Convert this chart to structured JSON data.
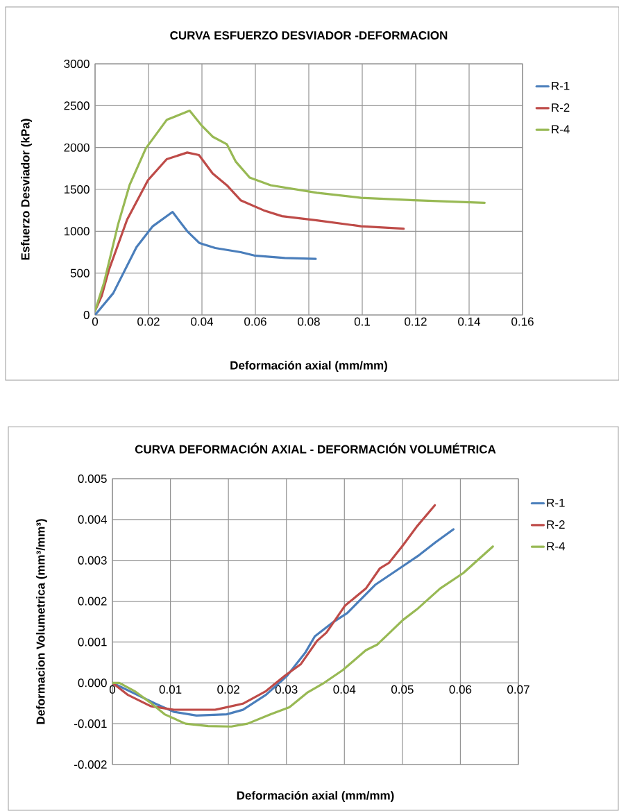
{
  "chart_data": [
    {
      "type": "line",
      "title": "CURVA ESFUERZO DESVIADOR -DEFORMACION",
      "xlabel": "Deformación axial (mm/mm)",
      "ylabel": "Esfuerzo Desviador (kPa)",
      "xlim": [
        0,
        0.16
      ],
      "ylim": [
        0,
        3000
      ],
      "xticks": [
        0,
        0.02,
        0.04,
        0.06,
        0.08,
        0.1,
        0.12,
        0.14,
        0.16
      ],
      "yticks": [
        0,
        500,
        1000,
        1500,
        2000,
        2500,
        3000
      ],
      "grid": true,
      "legend": "right",
      "series": [
        {
          "name": "R-1",
          "color": "#4a7ebb",
          "x": [
            0,
            0.0068,
            0.0155,
            0.0216,
            0.029,
            0.0345,
            0.039,
            0.045,
            0.0545,
            0.0596,
            0.071,
            0.0826
          ],
          "values": [
            0,
            260,
            810,
            1060,
            1230,
            1000,
            860,
            800,
            750,
            710,
            680,
            670
          ]
        },
        {
          "name": "R-2",
          "color": "#be4b48",
          "x": [
            0,
            0.0025,
            0.0051,
            0.012,
            0.0198,
            0.0268,
            0.0345,
            0.0389,
            0.044,
            0.0493,
            0.0545,
            0.0631,
            0.07,
            0.083,
            0.0995,
            0.1155
          ],
          "values": [
            50,
            230,
            530,
            1140,
            1610,
            1860,
            1940,
            1910,
            1690,
            1550,
            1370,
            1250,
            1180,
            1130,
            1060,
            1030
          ]
        },
        {
          "name": "R-4",
          "color": "#98b954",
          "x": [
            0,
            0.0034,
            0.0086,
            0.0129,
            0.019,
            0.0268,
            0.0354,
            0.0397,
            0.044,
            0.0493,
            0.0527,
            0.0579,
            0.0657,
            0.083,
            0.0995,
            0.1194,
            0.1458
          ],
          "values": [
            50,
            390,
            1080,
            1550,
            1990,
            2330,
            2440,
            2270,
            2130,
            2040,
            1830,
            1640,
            1550,
            1460,
            1400,
            1370,
            1340
          ]
        }
      ]
    },
    {
      "type": "line",
      "title": "CURVA DEFORMACIÓN AXIAL - DEFORMACIÓN VOLUMÉTRICA",
      "xlabel": "Deformación axial  (mm/mm)",
      "ylabel": "Deformacion Volumetrica (mm³/mm³)",
      "xlim": [
        0,
        0.07
      ],
      "ylim": [
        -0.002,
        0.005
      ],
      "xticks": [
        0,
        0.01,
        0.02,
        0.03,
        0.04,
        0.05,
        0.06,
        0.07
      ],
      "yticks": [
        {
          "value": -0.002,
          "label": "-0.002"
        },
        {
          "value": -0.001,
          "label": "-0.001"
        },
        {
          "value": 0,
          "label": "0.000"
        },
        {
          "value": 0.001,
          "label": "0.001"
        },
        {
          "value": 0.002,
          "label": "0.002"
        },
        {
          "value": 0.003,
          "label": "0.003"
        },
        {
          "value": 0.004,
          "label": "0.004"
        },
        {
          "value": 0.005,
          "label": "0.005"
        }
      ],
      "grid": true,
      "legend": "right",
      "series": [
        {
          "name": "R-1",
          "color": "#4a7ebb",
          "x": [
            0,
            0.0038,
            0.0074,
            0.0106,
            0.0145,
            0.0197,
            0.0225,
            0.0265,
            0.0301,
            0.0333,
            0.0349,
            0.0381,
            0.0405,
            0.0453,
            0.0501,
            0.0529,
            0.0557,
            0.0588
          ],
          "values": [
            0,
            -0.00026,
            -0.00051,
            -0.00071,
            -0.0008,
            -0.00077,
            -0.00066,
            -0.00029,
            0.00017,
            0.00075,
            0.00114,
            0.00149,
            0.00171,
            0.0024,
            0.00286,
            0.00313,
            0.00344,
            0.00376
          ]
        },
        {
          "name": "R-2",
          "color": "#be4b48",
          "x": [
            0,
            0.0026,
            0.0066,
            0.0106,
            0.0177,
            0.0225,
            0.0265,
            0.0297,
            0.0325,
            0.0353,
            0.0369,
            0.0401,
            0.0437,
            0.0461,
            0.0477,
            0.0501,
            0.0525,
            0.0556
          ],
          "values": [
            0,
            -0.00029,
            -0.00057,
            -0.00066,
            -0.00066,
            -0.00051,
            -0.0002,
            0.00017,
            0.00046,
            0.00103,
            0.00123,
            0.00189,
            0.00231,
            0.0028,
            0.00294,
            0.00337,
            0.00383,
            0.00435
          ]
        },
        {
          "name": "R-4",
          "color": "#98b954",
          "x": [
            0,
            0.0012,
            0.0038,
            0.0066,
            0.009,
            0.0126,
            0.0165,
            0.0205,
            0.0233,
            0.0273,
            0.0305,
            0.0337,
            0.0365,
            0.0397,
            0.0437,
            0.0457,
            0.0501,
            0.0525,
            0.0565,
            0.0605,
            0.0656
          ],
          "values": [
            0,
            0,
            -0.0002,
            -0.00049,
            -0.00077,
            -0.001,
            -0.00106,
            -0.00107,
            -0.001,
            -0.00077,
            -0.0006,
            -0.00023,
            0,
            0.00031,
            0.0008,
            0.00094,
            0.00154,
            0.0018,
            0.00231,
            0.00269,
            0.00334
          ]
        }
      ]
    }
  ]
}
